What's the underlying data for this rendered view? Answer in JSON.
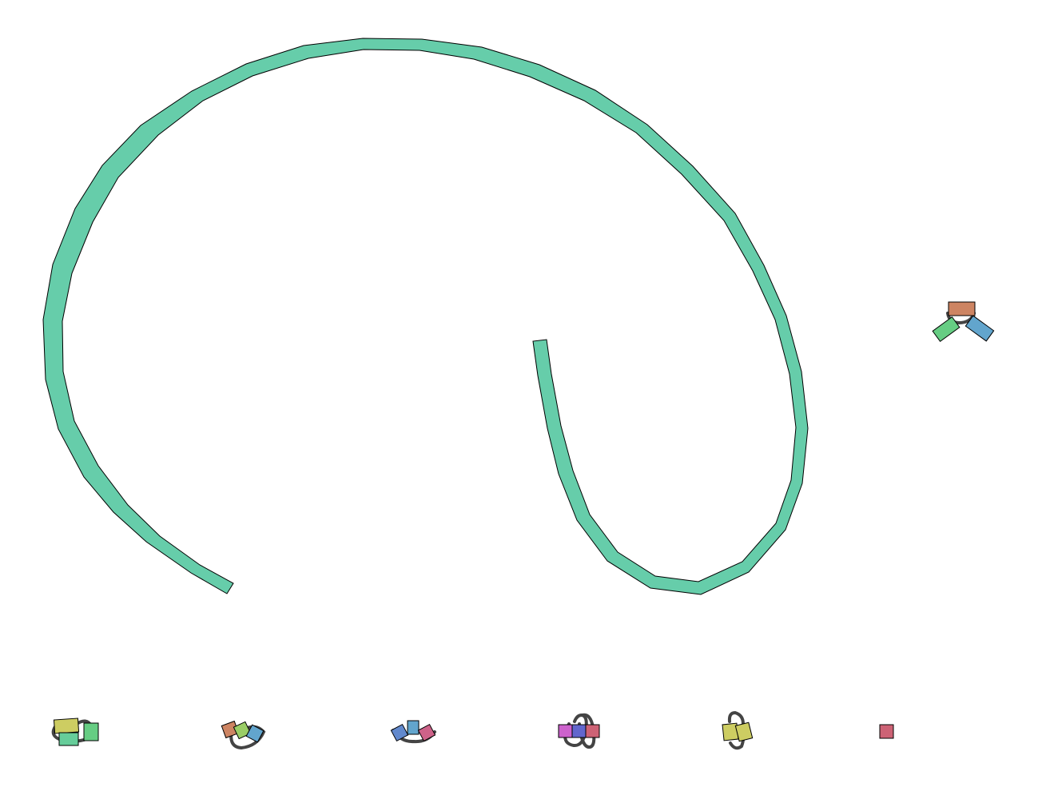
{
  "diagram": {
    "type": "assembly-graph",
    "background": "#ffffff",
    "edge_color": "#444444",
    "outline_color": "#000000",
    "components": [
      {
        "name": "long-contig",
        "nodes": [
          {
            "color": "#66cdaa"
          }
        ]
      },
      {
        "name": "three-node-cluster",
        "nodes": [
          {
            "color": "#cd8462"
          },
          {
            "color": "#66cd83"
          },
          {
            "color": "#62a5cd"
          }
        ]
      },
      {
        "name": "bottom-cluster-1",
        "nodes": [
          {
            "color": "#cdcd62"
          },
          {
            "color": "#66cd9a"
          },
          {
            "color": "#66cd83"
          }
        ]
      },
      {
        "name": "bottom-cluster-2",
        "nodes": [
          {
            "color": "#cd8462"
          },
          {
            "color": "#9acd66"
          },
          {
            "color": "#62a5cd"
          }
        ]
      },
      {
        "name": "bottom-cluster-3",
        "nodes": [
          {
            "color": "#6289cd"
          },
          {
            "color": "#62a5cd"
          },
          {
            "color": "#cd6289"
          }
        ]
      },
      {
        "name": "bottom-cluster-4",
        "nodes": [
          {
            "color": "#cd62cd"
          },
          {
            "color": "#6266cd"
          },
          {
            "color": "#cd6275"
          }
        ]
      },
      {
        "name": "bottom-cluster-5",
        "nodes": [
          {
            "color": "#cdcd62"
          },
          {
            "color": "#cdcd62"
          }
        ]
      },
      {
        "name": "single-node",
        "nodes": [
          {
            "color": "#cd6275"
          }
        ]
      }
    ]
  }
}
